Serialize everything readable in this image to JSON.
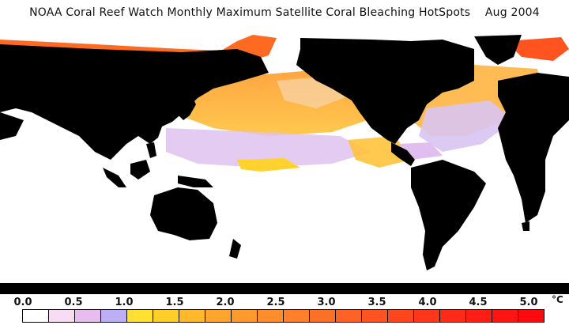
{
  "title": "NOAA Coral Reef Watch Monthly Maximum Satellite Coral Bleaching HotSpots    Aug 2004",
  "colors": {
    "land": "#000000",
    "ocean_zero": "#ffffff",
    "polar_ice": "#ffffff"
  },
  "legend": {
    "unit": "°C",
    "tick_labels": [
      "0.0",
      "0.5",
      "1.0",
      "1.5",
      "2.0",
      "2.5",
      "3.0",
      "3.5",
      "4.0",
      "4.5",
      "5.0"
    ],
    "bins": [
      "#ffffff",
      "#f7dcf3",
      "#e7bdef",
      "#bdaef5",
      "#ffe033",
      "#ffcf29",
      "#ffb92b",
      "#ffa42d",
      "#ff9b2d",
      "#ff8d2c",
      "#ff7f2a",
      "#ff7027",
      "#ff6224",
      "#ff5421",
      "#ff461d",
      "#ff371a",
      "#ff2a17",
      "#ff1f14",
      "#ff1512",
      "#ff0a0f"
    ]
  }
}
